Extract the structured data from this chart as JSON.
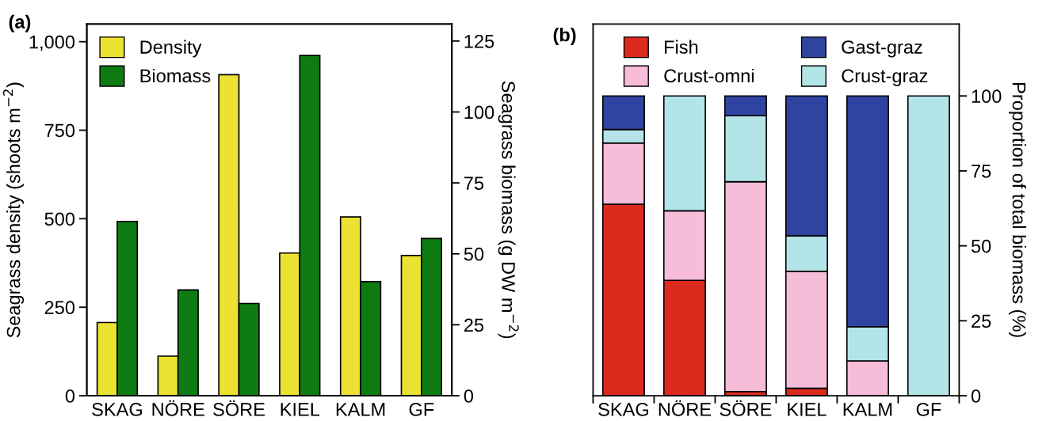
{
  "chart_data": [
    {
      "type": "bar",
      "title": "(a)",
      "ylabel": "Seagrass density (shoots m$^{−2}$)",
      "y2label": "Seagrass biomass (g DW m$^{−2}$)",
      "categories": [
        "SKAG",
        "NÖRE",
        "SÖRE",
        "KIEL",
        "KALM",
        "GF"
      ],
      "series": [
        {
          "name": "Density",
          "color": "#ebe232",
          "values": [
            207,
            112,
            907,
            403,
            505,
            396
          ]
        },
        {
          "name": "Biomass",
          "color": "#0e7c12",
          "axis": "y2",
          "values": [
            61.4,
            37.3,
            32.5,
            119.9,
            40.2,
            55.4
          ]
        }
      ],
      "ylim": [
        0,
        1050
      ],
      "yticks": [
        0,
        250,
        500,
        750,
        {
          "value": 1000,
          "label": "1,000"
        }
      ],
      "y2lim": [
        0,
        131
      ],
      "y2ticks": [
        0,
        25,
        50,
        75,
        100,
        125
      ],
      "legend": "top left",
      "grid": false
    },
    {
      "type": "bar",
      "title": "(b)",
      "ylabel": "Proportion of total biomass (%)",
      "stacked": true,
      "categories": [
        "SKAG",
        "NÖRE",
        "SÖRE",
        "KIEL",
        "KALM",
        "GF"
      ],
      "series": [
        {
          "name": "Fish",
          "color": "#dc2a1e",
          "values": [
            63.9,
            38.5,
            1.4,
            2.5,
            0,
            0
          ]
        },
        {
          "name": "Crust-omni",
          "color": "#f6bcd8",
          "values": [
            20.4,
            23.2,
            70.0,
            39.0,
            11.6,
            0
          ]
        },
        {
          "name": "Crust-graz",
          "color": "#b3e5e8",
          "values": [
            4.5,
            38.3,
            22.0,
            11.8,
            11.4,
            100
          ]
        },
        {
          "name": "Gast-graz",
          "color": "#2f43a0",
          "values": [
            11.2,
            0,
            6.6,
            46.7,
            77.0,
            0
          ]
        }
      ],
      "ylim": [
        0,
        124
      ],
      "yticks": [
        0,
        25,
        50,
        75,
        100
      ],
      "legend": "top",
      "grid": false
    }
  ]
}
